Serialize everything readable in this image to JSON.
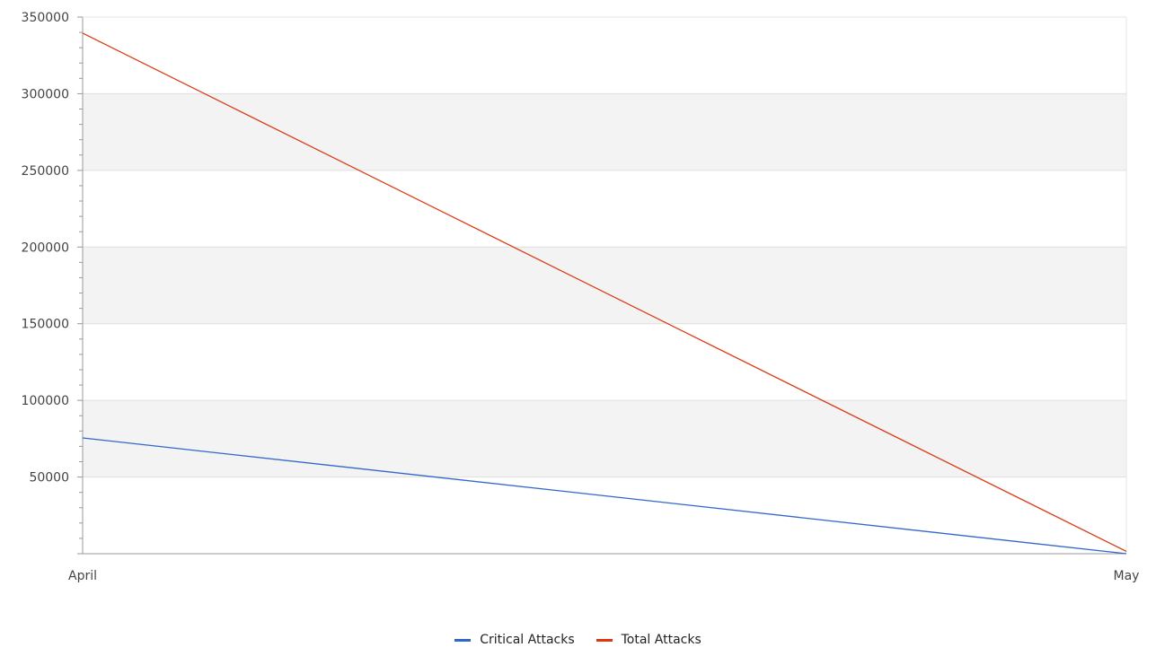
{
  "chart_data": {
    "type": "line",
    "title": "",
    "xlabel": "",
    "ylabel": "",
    "categories": [
      "April",
      "May"
    ],
    "ylim": [
      0,
      350000
    ],
    "y_ticks": [
      350000,
      300000,
      250000,
      200000,
      150000,
      100000,
      50000
    ],
    "y_tick_labels": [
      "350000",
      "300000",
      "250000",
      "200000",
      "150000",
      "100000",
      "50000"
    ],
    "grid": true,
    "alternating_bands": true,
    "legend_position": "bottom-center",
    "series": [
      {
        "name": "Critical Attacks",
        "values": [
          75500,
          0
        ],
        "color": "#3366cc"
      },
      {
        "name": "Total Attacks",
        "values": [
          339500,
          1500
        ],
        "color": "#dc3912"
      }
    ]
  }
}
